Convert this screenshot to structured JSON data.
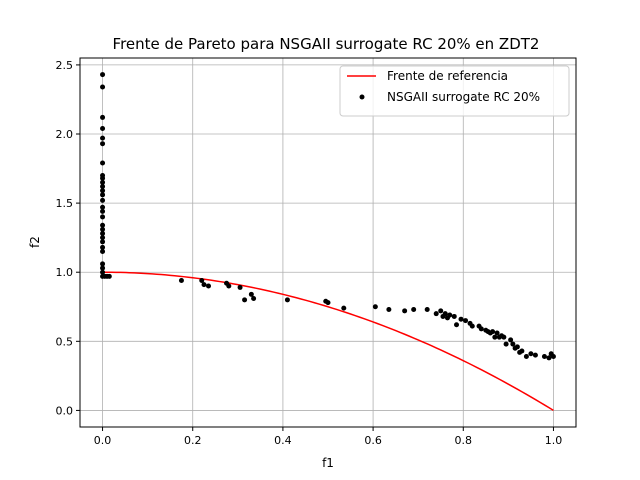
{
  "chart_data": {
    "type": "scatter",
    "title": "Frente de Pareto para NSGAII surrogate RC 20% en ZDT2",
    "xlabel": "f1",
    "ylabel": "f2",
    "xlim": [
      -0.05,
      1.05
    ],
    "ylim": [
      -0.12,
      2.55
    ],
    "x_ticks": [
      0.0,
      0.2,
      0.4,
      0.6,
      0.8,
      1.0
    ],
    "y_ticks": [
      0.0,
      0.5,
      1.0,
      1.5,
      2.0,
      2.5
    ],
    "x_tick_labels": [
      "0.0",
      "0.2",
      "0.4",
      "0.6",
      "0.8",
      "1.0"
    ],
    "y_tick_labels": [
      "0.0",
      "0.5",
      "1.0",
      "1.5",
      "2.0",
      "2.5"
    ],
    "grid": true,
    "legend_position": "top-right",
    "series": [
      {
        "name": "Frente de referencia",
        "kind": "line",
        "color": "#ff0000",
        "function": "1 - x^2",
        "x_range": [
          0,
          1
        ]
      },
      {
        "name": "NSGAII surrogate RC 20%",
        "kind": "scatter",
        "color": "#000000",
        "points": [
          [
            0.0,
            2.43
          ],
          [
            0.0,
            2.34
          ],
          [
            0.0,
            2.12
          ],
          [
            0.0,
            2.04
          ],
          [
            0.0,
            1.97
          ],
          [
            0.0,
            1.93
          ],
          [
            0.0,
            1.79
          ],
          [
            0.0,
            1.7
          ],
          [
            0.0,
            1.68
          ],
          [
            0.0,
            1.65
          ],
          [
            0.0,
            1.62
          ],
          [
            0.0,
            1.59
          ],
          [
            0.0,
            1.56
          ],
          [
            0.0,
            1.52
          ],
          [
            0.0,
            1.47
          ],
          [
            0.0,
            1.44
          ],
          [
            0.0,
            1.4
          ],
          [
            0.0,
            1.34
          ],
          [
            0.0,
            1.31
          ],
          [
            0.0,
            1.28
          ],
          [
            0.0,
            1.25
          ],
          [
            0.0,
            1.22
          ],
          [
            0.0,
            1.18
          ],
          [
            0.0,
            1.15
          ],
          [
            0.0,
            1.06
          ],
          [
            0.0,
            1.03
          ],
          [
            0.0,
            1.0
          ],
          [
            0.0,
            0.97
          ],
          [
            0.005,
            0.97
          ],
          [
            0.01,
            0.97
          ],
          [
            0.015,
            0.97
          ],
          [
            0.175,
            0.94
          ],
          [
            0.22,
            0.94
          ],
          [
            0.225,
            0.91
          ],
          [
            0.235,
            0.9
          ],
          [
            0.275,
            0.92
          ],
          [
            0.28,
            0.9
          ],
          [
            0.305,
            0.89
          ],
          [
            0.315,
            0.8
          ],
          [
            0.33,
            0.84
          ],
          [
            0.335,
            0.81
          ],
          [
            0.41,
            0.8
          ],
          [
            0.495,
            0.79
          ],
          [
            0.5,
            0.78
          ],
          [
            0.535,
            0.74
          ],
          [
            0.605,
            0.75
          ],
          [
            0.635,
            0.73
          ],
          [
            0.67,
            0.72
          ],
          [
            0.69,
            0.73
          ],
          [
            0.72,
            0.73
          ],
          [
            0.74,
            0.7
          ],
          [
            0.75,
            0.72
          ],
          [
            0.755,
            0.68
          ],
          [
            0.76,
            0.7
          ],
          [
            0.765,
            0.67
          ],
          [
            0.77,
            0.69
          ],
          [
            0.78,
            0.68
          ],
          [
            0.785,
            0.62
          ],
          [
            0.795,
            0.66
          ],
          [
            0.805,
            0.65
          ],
          [
            0.815,
            0.63
          ],
          [
            0.82,
            0.61
          ],
          [
            0.835,
            0.61
          ],
          [
            0.84,
            0.59
          ],
          [
            0.85,
            0.58
          ],
          [
            0.855,
            0.57
          ],
          [
            0.86,
            0.56
          ],
          [
            0.865,
            0.57
          ],
          [
            0.87,
            0.53
          ],
          [
            0.875,
            0.56
          ],
          [
            0.88,
            0.53
          ],
          [
            0.885,
            0.54
          ],
          [
            0.89,
            0.53
          ],
          [
            0.895,
            0.48
          ],
          [
            0.905,
            0.51
          ],
          [
            0.91,
            0.48
          ],
          [
            0.915,
            0.45
          ],
          [
            0.92,
            0.46
          ],
          [
            0.925,
            0.42
          ],
          [
            0.93,
            0.43
          ],
          [
            0.94,
            0.39
          ],
          [
            0.95,
            0.41
          ],
          [
            0.96,
            0.4
          ],
          [
            0.98,
            0.39
          ],
          [
            0.99,
            0.38
          ],
          [
            0.995,
            0.41
          ],
          [
            1.0,
            0.39
          ]
        ]
      }
    ]
  }
}
